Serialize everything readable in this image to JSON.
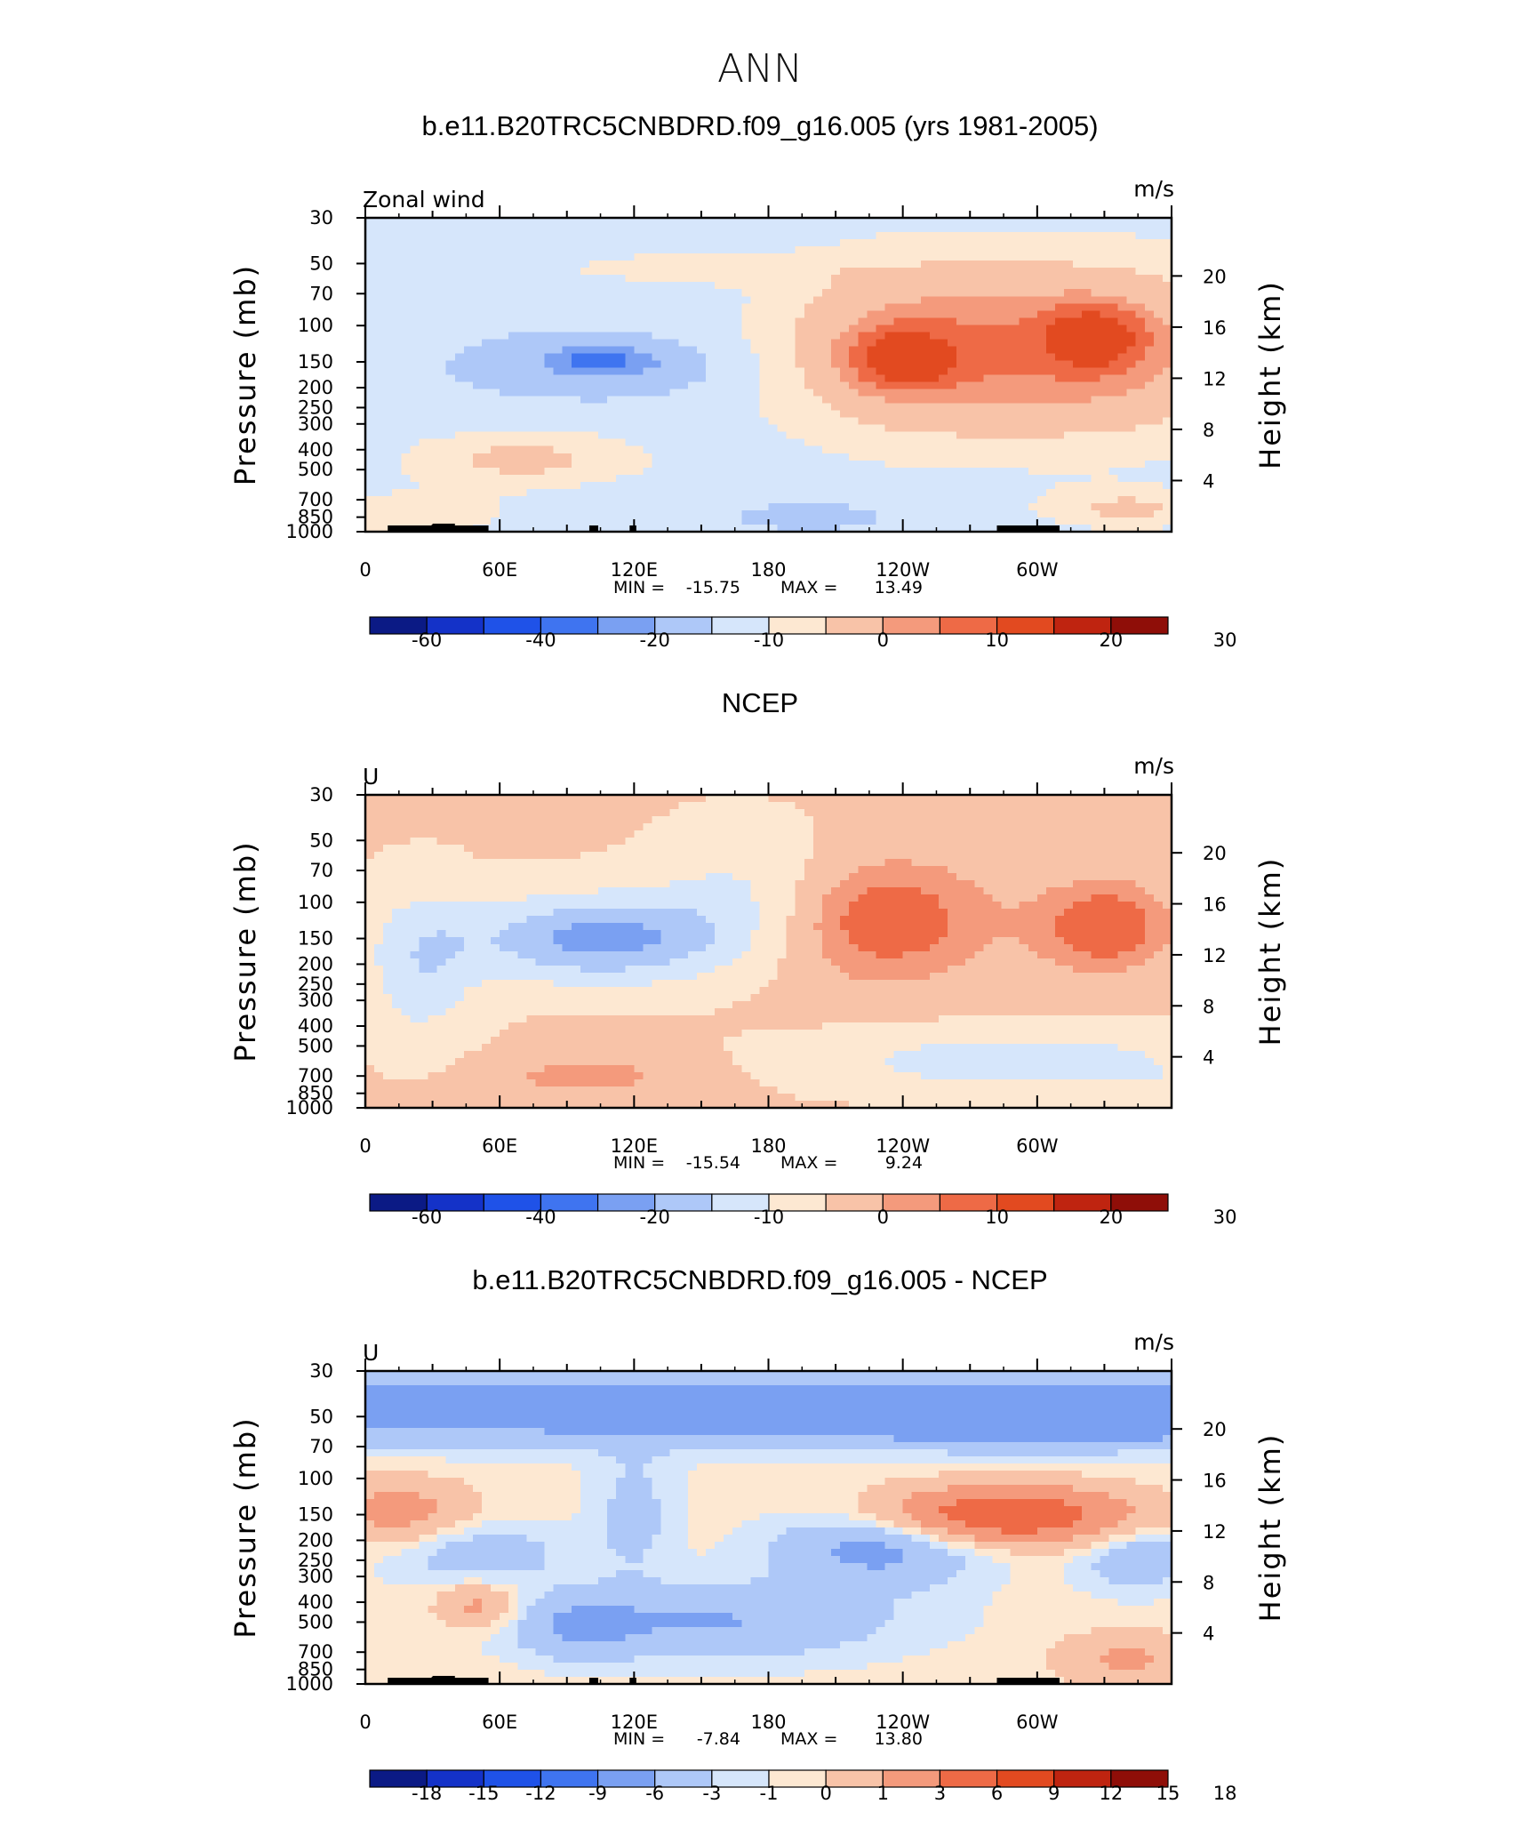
{
  "figure": {
    "title": "ANN",
    "colors": {
      "palette": [
        "#0b1a85",
        "#1432c8",
        "#1f52e8",
        "#3f74f0",
        "#7aa0f2",
        "#aec8f8",
        "#d6e6fb",
        "#fde8d2",
        "#f8c3a8",
        "#f49a7c",
        "#ee6a46",
        "#e24a20",
        "#bf2410",
        "#8f0e08"
      ],
      "land": "#000000"
    }
  },
  "chart_data": [
    {
      "type": "heatmap",
      "panel_title": "b.e11.B20TRC5CNBDRD.f09_g16.005 (yrs 1981-2005)",
      "left_string": "Zonal wind",
      "right_string": "m/s",
      "xlabel": "",
      "ylabel": "Pressure (mb)",
      "y2label": "Height (km)",
      "x_ticks": [
        "0",
        "60E",
        "120E",
        "180",
        "120W",
        "60W"
      ],
      "y_ticks": [
        "30",
        "50",
        "70",
        "100",
        "150",
        "200",
        "250",
        "300",
        "400",
        "500",
        "700",
        "850",
        "1000"
      ],
      "y2_ticks": [
        "4",
        "8",
        "12",
        "16",
        "20"
      ],
      "xlim": [
        0,
        360
      ],
      "ylim": [
        1000,
        30
      ],
      "y_scale": "log",
      "min_label": "MIN = ",
      "min_value": "-15.75",
      "max_label": "MAX = ",
      "max_value": "13.49",
      "colorbar_labels": [
        "-60",
        "-40",
        "-20",
        "-10",
        "0",
        "10",
        "20",
        "30"
      ],
      "grid": false
    },
    {
      "type": "heatmap",
      "panel_title": "NCEP",
      "left_string": "U",
      "right_string": "m/s",
      "xlabel": "",
      "ylabel": "Pressure (mb)",
      "y2label": "Height (km)",
      "x_ticks": [
        "0",
        "60E",
        "120E",
        "180",
        "120W",
        "60W"
      ],
      "y_ticks": [
        "30",
        "50",
        "70",
        "100",
        "150",
        "200",
        "250",
        "300",
        "400",
        "500",
        "700",
        "850",
        "1000"
      ],
      "y2_ticks": [
        "4",
        "8",
        "12",
        "16",
        "20"
      ],
      "xlim": [
        0,
        360
      ],
      "ylim": [
        1000,
        30
      ],
      "y_scale": "log",
      "min_label": "MIN = ",
      "min_value": "-15.54",
      "max_label": "MAX = ",
      "max_value": "9.24",
      "colorbar_labels": [
        "-60",
        "-40",
        "-20",
        "-10",
        "0",
        "10",
        "20",
        "30"
      ],
      "grid": false
    },
    {
      "type": "heatmap",
      "panel_title": "b.e11.B20TRC5CNBDRD.f09_g16.005 - NCEP",
      "left_string": "U",
      "right_string": "m/s",
      "xlabel": "",
      "ylabel": "Pressure (mb)",
      "y2label": "Height (km)",
      "x_ticks": [
        "0",
        "60E",
        "120E",
        "180",
        "120W",
        "60W"
      ],
      "y_ticks": [
        "30",
        "50",
        "70",
        "100",
        "150",
        "200",
        "250",
        "300",
        "400",
        "500",
        "700",
        "850",
        "1000"
      ],
      "y2_ticks": [
        "4",
        "8",
        "12",
        "16",
        "20"
      ],
      "xlim": [
        0,
        360
      ],
      "ylim": [
        1000,
        30
      ],
      "y_scale": "log",
      "min_label": "MIN = ",
      "min_value": "-7.84",
      "max_label": "MAX = ",
      "max_value": "13.80",
      "colorbar_labels": [
        "-18",
        "-15",
        "-12",
        "-9",
        "-6",
        "-3",
        "-1",
        "0",
        "1",
        "3",
        "6",
        "9",
        "12",
        "15",
        "18"
      ],
      "grid": false
    }
  ]
}
